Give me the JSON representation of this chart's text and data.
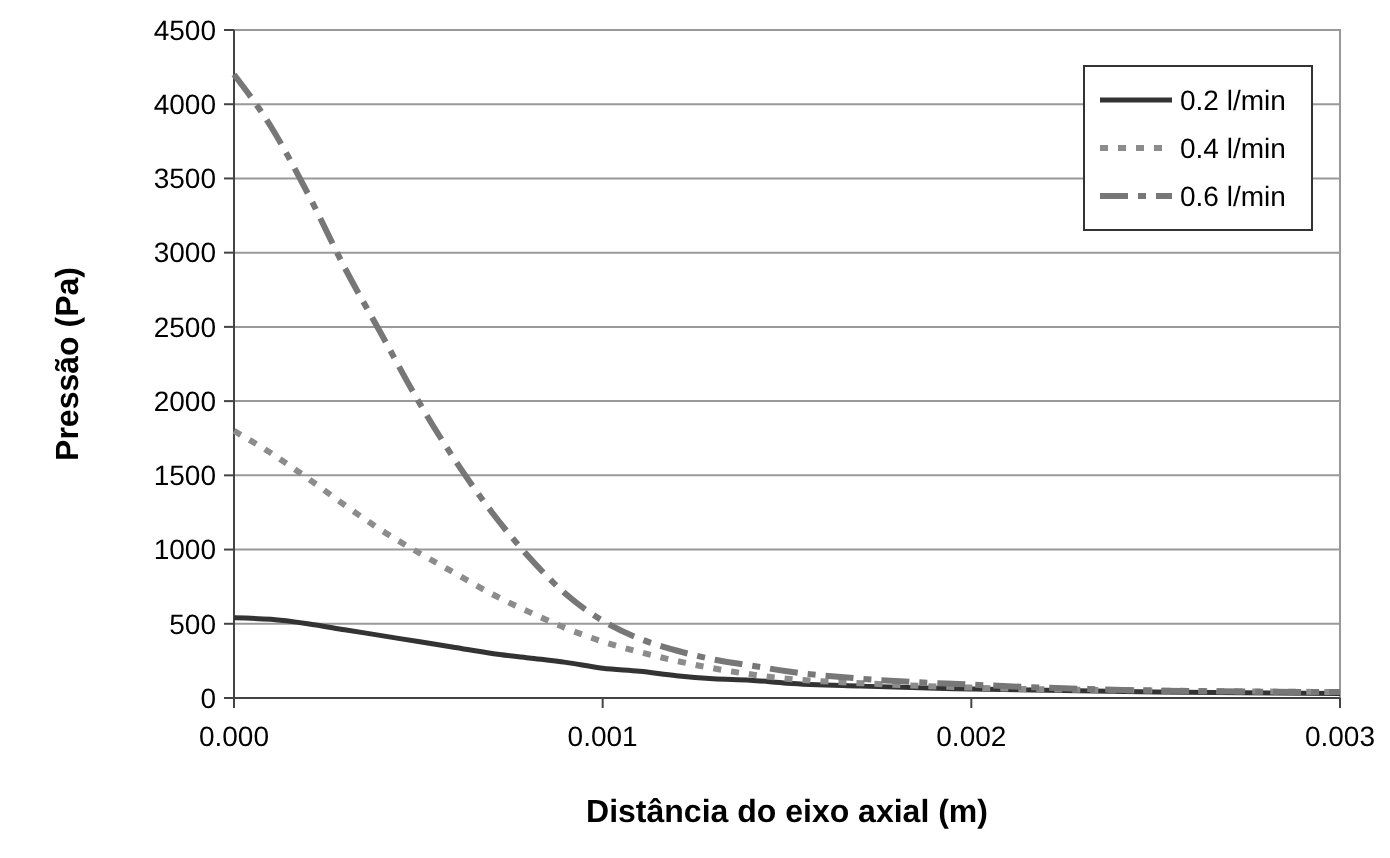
{
  "chart_data": {
    "type": "line",
    "xlabel": "Distância do eixo axial (m)",
    "ylabel": "Pressão (Pa)",
    "x": [
      0,
      0.0001,
      0.0002,
      0.0003,
      0.0004,
      0.0005,
      0.0006,
      0.0007,
      0.0008,
      0.0009,
      0.001,
      0.0011,
      0.0012,
      0.0013,
      0.0014,
      0.0015,
      0.0017,
      0.002,
      0.0025,
      0.003
    ],
    "series": [
      {
        "name": "0.2 l/min",
        "color": "#333333",
        "line_style": "solid",
        "values": [
          540,
          530,
          500,
          460,
          420,
          380,
          340,
          300,
          270,
          240,
          200,
          180,
          150,
          130,
          120,
          100,
          80,
          60,
          40,
          30
        ]
      },
      {
        "name": "0.4 l/min",
        "color": "#8c8c8c",
        "line_style": "dotted",
        "values": [
          1800,
          1650,
          1480,
          1300,
          1130,
          980,
          840,
          700,
          580,
          470,
          380,
          310,
          250,
          200,
          160,
          130,
          100,
          70,
          50,
          40
        ]
      },
      {
        "name": "0.6 l/min",
        "color": "#777777",
        "line_style": "dashed",
        "values": [
          4200,
          3850,
          3400,
          2900,
          2450,
          2000,
          1600,
          1250,
          950,
          700,
          520,
          400,
          320,
          260,
          220,
          180,
          130,
          90,
          50,
          40
        ]
      }
    ],
    "xlim": [
      0,
      0.003
    ],
    "xticks": [
      {
        "value": 0,
        "label": "0.000"
      },
      {
        "value": 0.001,
        "label": "0.001"
      },
      {
        "value": 0.002,
        "label": "0.002"
      },
      {
        "value": 0.003,
        "label": "0.003"
      }
    ],
    "ylim": [
      0,
      4500
    ],
    "yticks": [
      0,
      500,
      1000,
      1500,
      2000,
      2500,
      3000,
      3500,
      4000,
      4500
    ],
    "grid": "y",
    "legend": "top right",
    "marker": "none"
  }
}
